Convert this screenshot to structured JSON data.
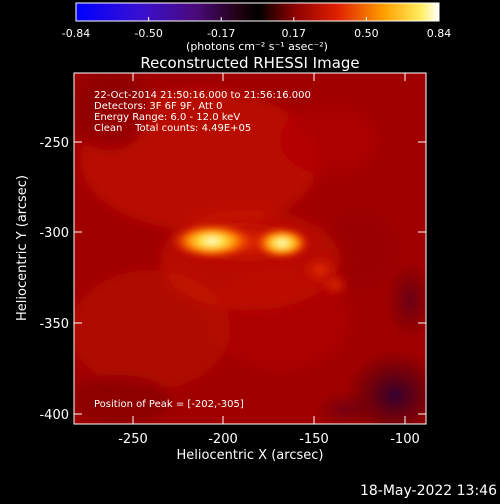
{
  "title": "Reconstructed RHESSI Image",
  "colorbar": {
    "tick_labels": [
      "-0.84",
      "-0.50",
      "-0.17",
      "0.17",
      "0.50",
      "0.84"
    ],
    "unit_label": "(photons cm⁻² s⁻¹ asec⁻²)",
    "range": [
      -0.84,
      0.84
    ]
  },
  "info": {
    "line1": "22-Oct-2014 21:50:16.000 to 21:56:16.000",
    "line2": "Detectors: 3F 6F 9F, Att 0",
    "line3": "Energy Range: 6.0 - 12.0 keV",
    "line4": "Clean    Total counts: 4.49E+05"
  },
  "peak_text": "Position of Peak = [-202,-305]",
  "footer_date": "18-May-2022 13:46",
  "chart_data": {
    "type": "heatmap",
    "title": "Reconstructed RHESSI Image",
    "xlabel": "Heliocentric X (arcsec)",
    "ylabel": "Heliocentric Y (arcsec)",
    "xlim": [
      -282,
      -88
    ],
    "ylim": [
      -404,
      -212
    ],
    "x_ticks": [
      -250,
      -200,
      -150,
      -100
    ],
    "y_ticks": [
      -250,
      -300,
      -350,
      -400
    ],
    "x_tick_labels": [
      "-250",
      "-200",
      "-150",
      "-100"
    ],
    "y_tick_labels": [
      "-250",
      "-300",
      "-350",
      "-400"
    ],
    "colorscale": "hot (negative: blue-purple)",
    "peak_position": [
      -202,
      -305
    ],
    "sources": [
      {
        "x": -202,
        "y": -305,
        "intensity": 0.84
      },
      {
        "x": -168,
        "y": -305,
        "intensity": 0.72
      }
    ]
  }
}
